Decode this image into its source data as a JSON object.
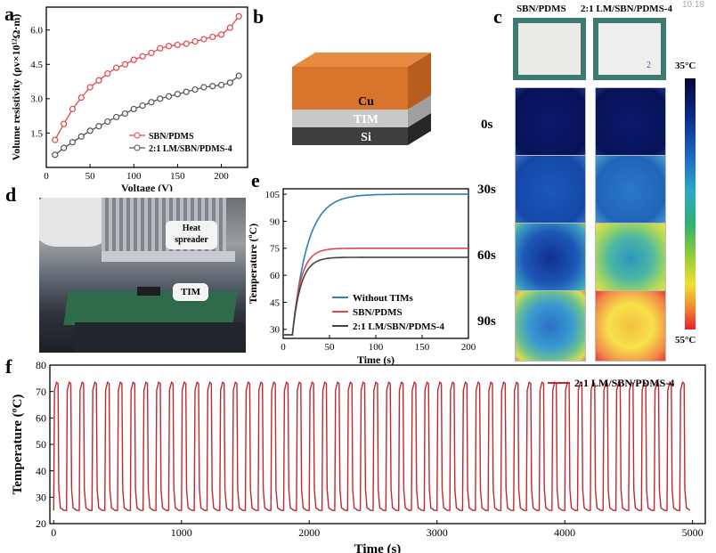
{
  "panel_labels": {
    "a": "a",
    "b": "b",
    "c": "c",
    "d": "d",
    "e": "e",
    "f": "f"
  },
  "corner_text": "10.18",
  "panel_b": {
    "layers": [
      "Cu",
      "TIM",
      "Si"
    ],
    "colors": {
      "cu": "#d9742c",
      "tim": "#c9c9c9",
      "si": "#3f3f3f"
    }
  },
  "panel_c": {
    "headers": [
      "SBN/PDMS",
      "2:1 LM/SBN/PDMS-4"
    ],
    "times": [
      "0s",
      "30s",
      "60s",
      "90s"
    ],
    "colorbar_top": "35°C",
    "colorbar_bottom": "55°C"
  },
  "panel_d": {
    "callouts": [
      "Heat spreader",
      "TIM"
    ]
  },
  "chart_data": [
    {
      "panel": "a",
      "type": "line",
      "xlabel": "Voltage (V)",
      "ylabel": "Volume resistivity (ρv×10¹²Ω·m)",
      "xlim": [
        0,
        230
      ],
      "ylim": [
        0,
        7
      ],
      "xticks": [
        0,
        50,
        100,
        150,
        200
      ],
      "yticks": [
        1.5,
        3.0,
        4.5,
        6.0
      ],
      "ytick_labels": [
        "1.5",
        "3.0",
        "4.5",
        "6.0"
      ],
      "legend": "bottom-right",
      "x": [
        10,
        20,
        30,
        40,
        50,
        60,
        70,
        80,
        90,
        100,
        110,
        120,
        130,
        140,
        150,
        160,
        170,
        180,
        190,
        200,
        210,
        220
      ],
      "series": [
        {
          "name": "SBN/PDMS",
          "color": "#e0474c",
          "marker": "circle",
          "values": [
            1.2,
            1.9,
            2.55,
            3.05,
            3.5,
            3.8,
            4.1,
            4.35,
            4.5,
            4.7,
            4.85,
            5.0,
            5.2,
            5.3,
            5.35,
            5.4,
            5.5,
            5.6,
            5.7,
            5.8,
            6.1,
            6.6
          ]
        },
        {
          "name": "2:1 LM/SBN/PDMS-4",
          "color": "#555555",
          "marker": "circle",
          "values": [
            0.55,
            0.85,
            1.1,
            1.35,
            1.6,
            1.8,
            2.0,
            2.2,
            2.35,
            2.55,
            2.7,
            2.85,
            3.0,
            3.1,
            3.2,
            3.3,
            3.4,
            3.5,
            3.55,
            3.6,
            3.7,
            4.0
          ]
        }
      ]
    },
    {
      "panel": "e",
      "type": "line",
      "xlabel": "Time (s)",
      "ylabel": "Temperature (ºC)",
      "xlim": [
        0,
        200
      ],
      "ylim": [
        25,
        108
      ],
      "xticks": [
        0,
        50,
        100,
        150,
        200
      ],
      "yticks": [
        30,
        45,
        60,
        75,
        90,
        105
      ],
      "legend": "bottom-right",
      "series": [
        {
          "name": "Without TIMs",
          "color": "#2c7fb8",
          "plateau": 105,
          "rise": 16
        },
        {
          "name": "SBN/PDMS",
          "color": "#e0474c",
          "plateau": 75,
          "rise": 9
        },
        {
          "name": "2:1 LM/SBN/PDMS-4",
          "color": "#444444",
          "plateau": 70,
          "rise": 9
        }
      ],
      "baseline": 27,
      "onset": 10
    },
    {
      "panel": "f",
      "type": "line",
      "xlabel": "Time (s)",
      "ylabel": "Temperature (ºC)",
      "xlim": [
        -30,
        5100
      ],
      "ylim": [
        20,
        80
      ],
      "xticks": [
        0,
        1000,
        2000,
        3000,
        4000,
        5000
      ],
      "yticks": [
        20,
        30,
        40,
        50,
        60,
        70,
        80
      ],
      "legend": "top-right",
      "series": [
        {
          "name": "2:1 LM/SBN/PDMS-4",
          "color": "#c0282d",
          "low": 25,
          "high": 73.5,
          "cycles": 50,
          "period": 100
        }
      ]
    }
  ]
}
